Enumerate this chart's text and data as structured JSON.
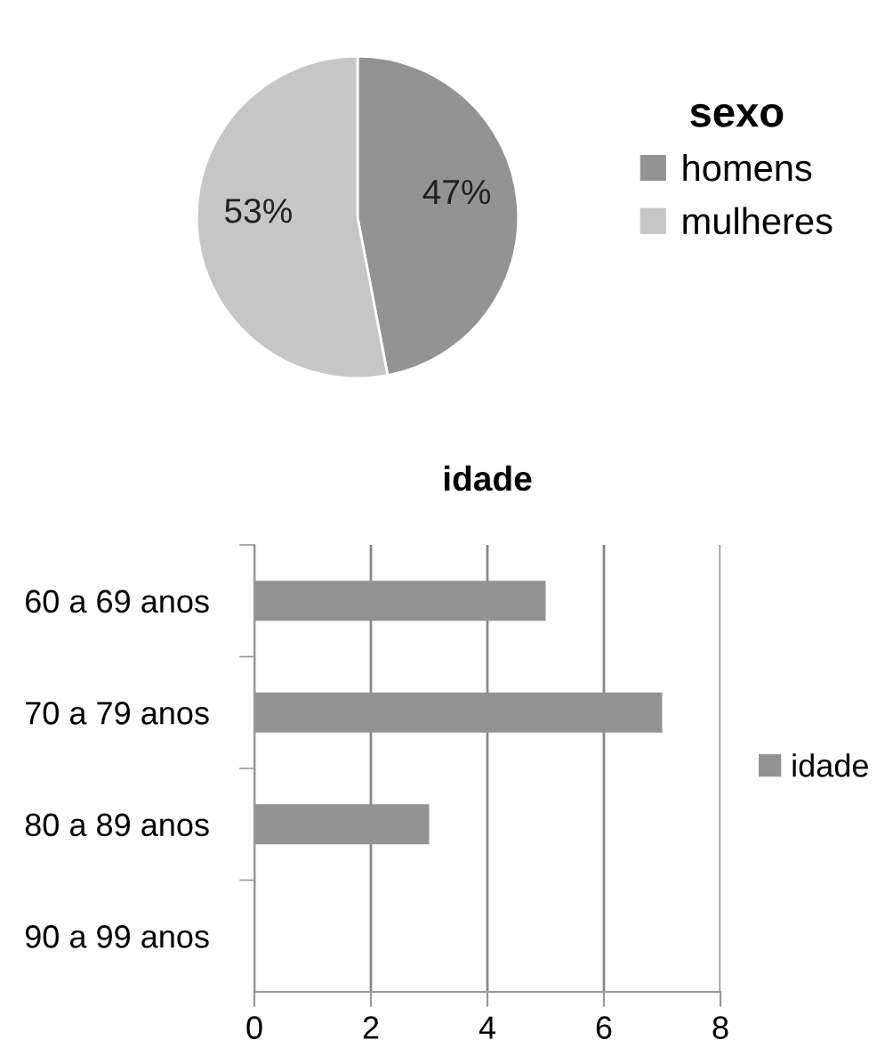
{
  "chart_data": [
    {
      "type": "pie",
      "legend_title": "sexo",
      "categories": [
        "homens",
        "mulheres"
      ],
      "values": [
        47,
        53
      ],
      "colors": [
        "#939393",
        "#c6c6c6"
      ],
      "value_labels": [
        "47%",
        "53%"
      ],
      "legend": "right"
    },
    {
      "type": "bar",
      "orientation": "horizontal",
      "title": "idade",
      "categories": [
        "60 a 69 anos",
        "70 a 79 anos",
        "80 a 89 anos",
        "90 a 99 anos"
      ],
      "series": [
        {
          "name": "idade",
          "color": "#939393",
          "values": [
            5,
            7,
            3,
            0
          ]
        }
      ],
      "xlim": [
        0,
        8
      ],
      "xticks": [
        0,
        2,
        4,
        6,
        8
      ],
      "grid": "x",
      "legend": "right"
    }
  ]
}
